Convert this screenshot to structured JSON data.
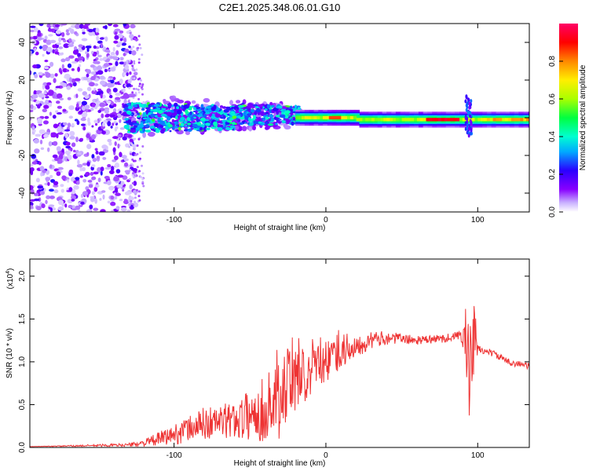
{
  "chart_data": [
    {
      "type": "heatmap",
      "title": "C2E1.2025.348.06.01.G10",
      "xlabel": "Height of straight line (km)",
      "ylabel": "Frequency (Hz)",
      "xlim": [
        -195,
        134
      ],
      "ylim": [
        -50,
        50
      ],
      "x_ticks": [
        -100,
        0,
        100
      ],
      "y_ticks": [
        -40,
        -20,
        0,
        20,
        40
      ],
      "colorbar": {
        "label": "Normalized spectral amplitude",
        "range": [
          0,
          1
        ],
        "ticks": [
          0.0,
          0.2,
          0.4,
          0.6,
          0.8
        ],
        "colors": [
          "#ffffff",
          "#c8b0ff",
          "#8800ff",
          "#2a00ff",
          "#00aaff",
          "#00ffd0",
          "#00ff40",
          "#aaff00",
          "#ffee00",
          "#ff8800",
          "#ff0000",
          "#ff0066"
        ]
      },
      "regions": [
        {
          "name": "diffuse noise",
          "x": [
            -195,
            -130
          ],
          "freq": [
            -50,
            50
          ],
          "amplitude": 0.25
        },
        {
          "name": "narrowing band",
          "x": [
            -130,
            -20
          ],
          "freq_center": 0,
          "freq_halfwidth": [
            9,
            5
          ],
          "amplitude": 0.45
        },
        {
          "name": "stable carrier",
          "x": [
            -20,
            134
          ],
          "freq_center": -1,
          "freq_halfwidth": 2,
          "amplitude": 0.9
        },
        {
          "name": "disturbance",
          "x": [
            88,
            98
          ],
          "freq": [
            -10,
            12
          ],
          "amplitude": 0.5
        }
      ]
    },
    {
      "type": "line",
      "xlabel": "Height of straight line (km)",
      "ylabel": "SNR (10 * v/v)",
      "y_multiplier": "(x10",
      "y_multiplier_exp": "4",
      "y_multiplier_close": ")",
      "xlim": [
        -195,
        134
      ],
      "ylim": [
        0,
        2.2
      ],
      "x_ticks": [
        -100,
        0,
        100
      ],
      "y_ticks": [
        0.0,
        0.5,
        1.0,
        1.5,
        2.0
      ],
      "color": "#ee3333",
      "series": [
        {
          "name": "SNR",
          "x": [
            -195,
            -160,
            -130,
            -120,
            -110,
            -100,
            -90,
            -80,
            -70,
            -60,
            -50,
            -40,
            -30,
            -25,
            -20,
            -10,
            0,
            10,
            20,
            30,
            40,
            50,
            60,
            70,
            80,
            85,
            90,
            93,
            95,
            97,
            100,
            110,
            120,
            134
          ],
          "y": [
            0.01,
            0.02,
            0.03,
            0.05,
            0.1,
            0.15,
            0.22,
            0.28,
            0.3,
            0.32,
            0.38,
            0.45,
            0.6,
            0.75,
            0.8,
            0.9,
            1.0,
            1.12,
            1.2,
            1.25,
            1.28,
            1.27,
            1.25,
            1.26,
            1.28,
            1.3,
            1.3,
            1.2,
            0.6,
            1.3,
            1.15,
            1.1,
            1.0,
            0.95
          ],
          "spread": [
            0.0,
            0.01,
            0.02,
            0.04,
            0.08,
            0.12,
            0.15,
            0.2,
            0.2,
            0.22,
            0.3,
            0.4,
            0.5,
            0.45,
            0.4,
            0.3,
            0.25,
            0.22,
            0.15,
            0.1,
            0.08,
            0.06,
            0.05,
            0.05,
            0.05,
            0.05,
            0.08,
            0.6,
            0.9,
            0.6,
            0.05,
            0.04,
            0.04,
            0.04
          ]
        }
      ]
    }
  ]
}
